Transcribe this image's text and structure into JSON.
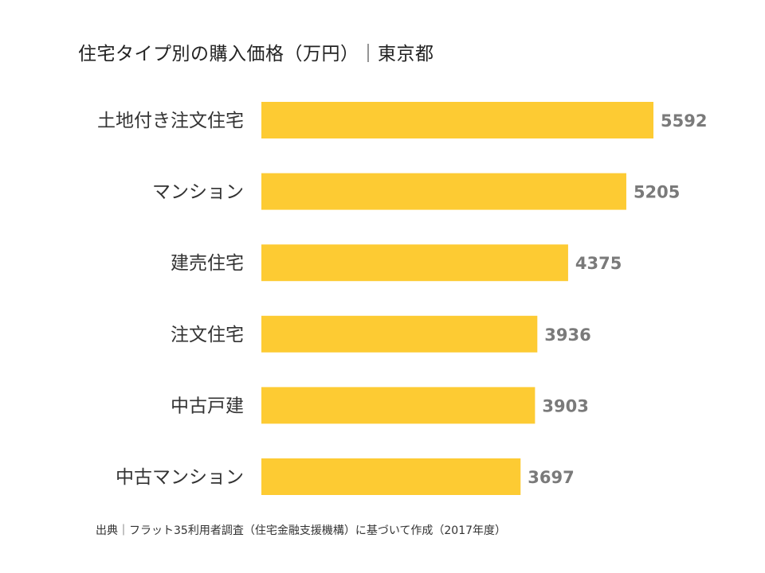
{
  "title": "住宅タイプ別の購入価格（万円）｜東京都",
  "source": "出典｜フラット35利用者調査（住宅金融支援機構）に基づいて作成（2017年度）",
  "colors": {
    "bar": "#FDCB33",
    "value_text": "#7a7a7a"
  },
  "chart_data": {
    "type": "bar",
    "orientation": "horizontal",
    "title": "住宅タイプ別の購入価格（万円）｜東京都",
    "categories": [
      "土地付き注文住宅",
      "マンション",
      "建売住宅",
      "注文住宅",
      "中古戸建",
      "中古マンション"
    ],
    "values": [
      5592,
      5205,
      4375,
      3936,
      3903,
      3697
    ],
    "data_labels": [
      "5592",
      "5205",
      "4375",
      "3936",
      "3903",
      "3697"
    ],
    "xlim": [
      0,
      5592
    ],
    "grid": false,
    "legend": "none"
  }
}
